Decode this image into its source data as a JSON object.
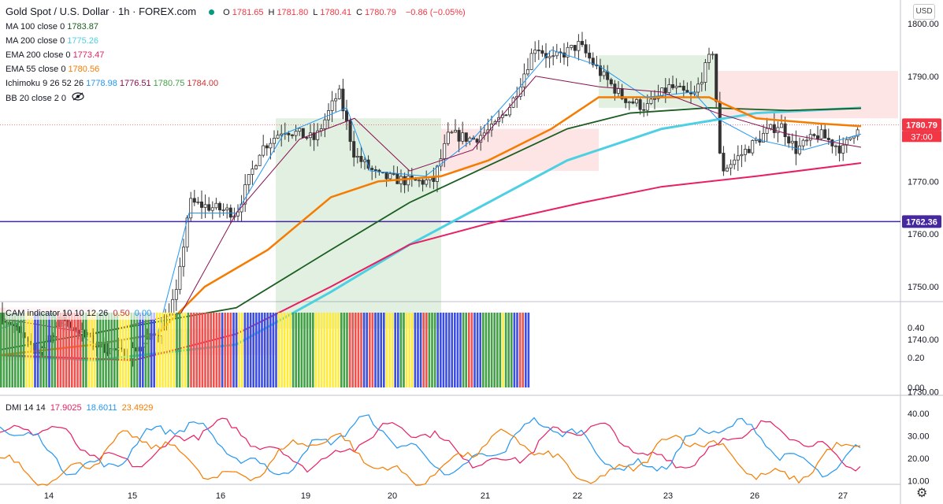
{
  "header": {
    "symbol": "Gold Spot / U.S. Dollar · 1h · FOREX.com",
    "ohlc": [
      {
        "k": "O",
        "v": "1781.65"
      },
      {
        "k": "H",
        "v": "1781.80"
      },
      {
        "k": "L",
        "v": "1780.41"
      },
      {
        "k": "C",
        "v": "1780.79"
      }
    ],
    "change": "−0.86 (−0.05%)",
    "colors": {
      "up": "#089981",
      "down": "#f23645",
      "text": "#131722"
    }
  },
  "indicators": [
    {
      "label": "MA 100 close 0",
      "value": "1783.87",
      "color": "#1b5e20"
    },
    {
      "label": "MA 200 close 0",
      "value": "1775.26",
      "color": "#4dd0e1"
    },
    {
      "label": "EMA 200 close 0",
      "value": "1773.47",
      "color": "#e91e63"
    },
    {
      "label": "EMA 55 close 0",
      "value": "1780.56",
      "color": "#f57c00"
    },
    {
      "label": "Ichimoku 9 26 52 26",
      "values": [
        {
          "v": "1778.98",
          "color": "#2196f3"
        },
        {
          "v": "1776.51",
          "color": "#880e4f"
        },
        {
          "v": "1780.75",
          "color": "#43a047"
        },
        {
          "v": "1784.00",
          "color": "#d32f2f"
        }
      ]
    },
    {
      "label": "BB 20 close 2 0",
      "value": "",
      "color": "#131722"
    }
  ],
  "currency_button": "USD",
  "price_axis": {
    "ticks": [
      "1800.00",
      "1790.00",
      "1780.00",
      "1770.00",
      "1760.00",
      "1750.00",
      "1740.00",
      "1730.00"
    ],
    "last_price_label": "1780.79",
    "countdown_label": "37:00",
    "hline_label": "1762.36",
    "hline_color": "#4527a0",
    "last_price_color": "#f23645"
  },
  "time_axis": {
    "labels": [
      "14",
      "15",
      "16",
      "19",
      "20",
      "21",
      "22",
      "23",
      "26",
      "27"
    ]
  },
  "cam_pane": {
    "title": "CAM indicator 10 10 12 26",
    "values": [
      "0.50",
      "0.00"
    ],
    "axis": [
      "0.40",
      "0.20",
      "0.00"
    ],
    "colors": {
      "green": "#43a047",
      "blue": "#3d4fe0",
      "yellow": "#ffeb3b",
      "red": "#ef5350"
    }
  },
  "dmi_pane": {
    "title": "DMI 14 14",
    "values": [
      {
        "v": "17.9025",
        "color": "#e91e63"
      },
      {
        "v": "18.6011",
        "color": "#2196f3"
      },
      {
        "v": "23.4929",
        "color": "#f57c00"
      }
    ],
    "axis": [
      "40.00",
      "30.00",
      "20.00",
      "10.00"
    ]
  }
}
